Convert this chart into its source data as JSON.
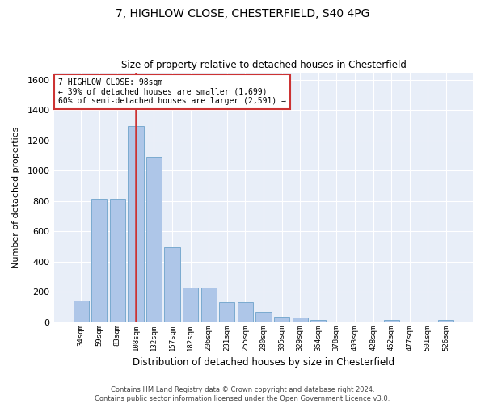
{
  "title": "7, HIGHLOW CLOSE, CHESTERFIELD, S40 4PG",
  "subtitle": "Size of property relative to detached houses in Chesterfield",
  "xlabel": "Distribution of detached houses by size in Chesterfield",
  "ylabel": "Number of detached properties",
  "footer_line1": "Contains HM Land Registry data © Crown copyright and database right 2024.",
  "footer_line2": "Contains public sector information licensed under the Open Government Licence v3.0.",
  "annotation_line1": "7 HIGHLOW CLOSE: 98sqm",
  "annotation_line2": "← 39% of detached houses are smaller (1,699)",
  "annotation_line3": "60% of semi-detached houses are larger (2,591) →",
  "bar_color": "#aec6e8",
  "bar_edge_color": "#7aaad0",
  "highlight_bar_color": "#cc3333",
  "background_color": "#e8eef8",
  "categories": [
    "34sqm",
    "59sqm",
    "83sqm",
    "108sqm",
    "132sqm",
    "157sqm",
    "182sqm",
    "206sqm",
    "231sqm",
    "255sqm",
    "280sqm",
    "305sqm",
    "329sqm",
    "354sqm",
    "378sqm",
    "403sqm",
    "428sqm",
    "452sqm",
    "477sqm",
    "501sqm",
    "526sqm"
  ],
  "values": [
    140,
    815,
    815,
    1295,
    1090,
    495,
    230,
    230,
    130,
    130,
    65,
    38,
    28,
    13,
    5,
    3,
    2,
    14,
    2,
    2,
    12
  ],
  "highlight_index": 3,
  "ylim": [
    0,
    1650
  ],
  "yticks": [
    0,
    200,
    400,
    600,
    800,
    1000,
    1200,
    1400,
    1600
  ],
  "figsize": [
    6.0,
    5.0
  ],
  "dpi": 100
}
